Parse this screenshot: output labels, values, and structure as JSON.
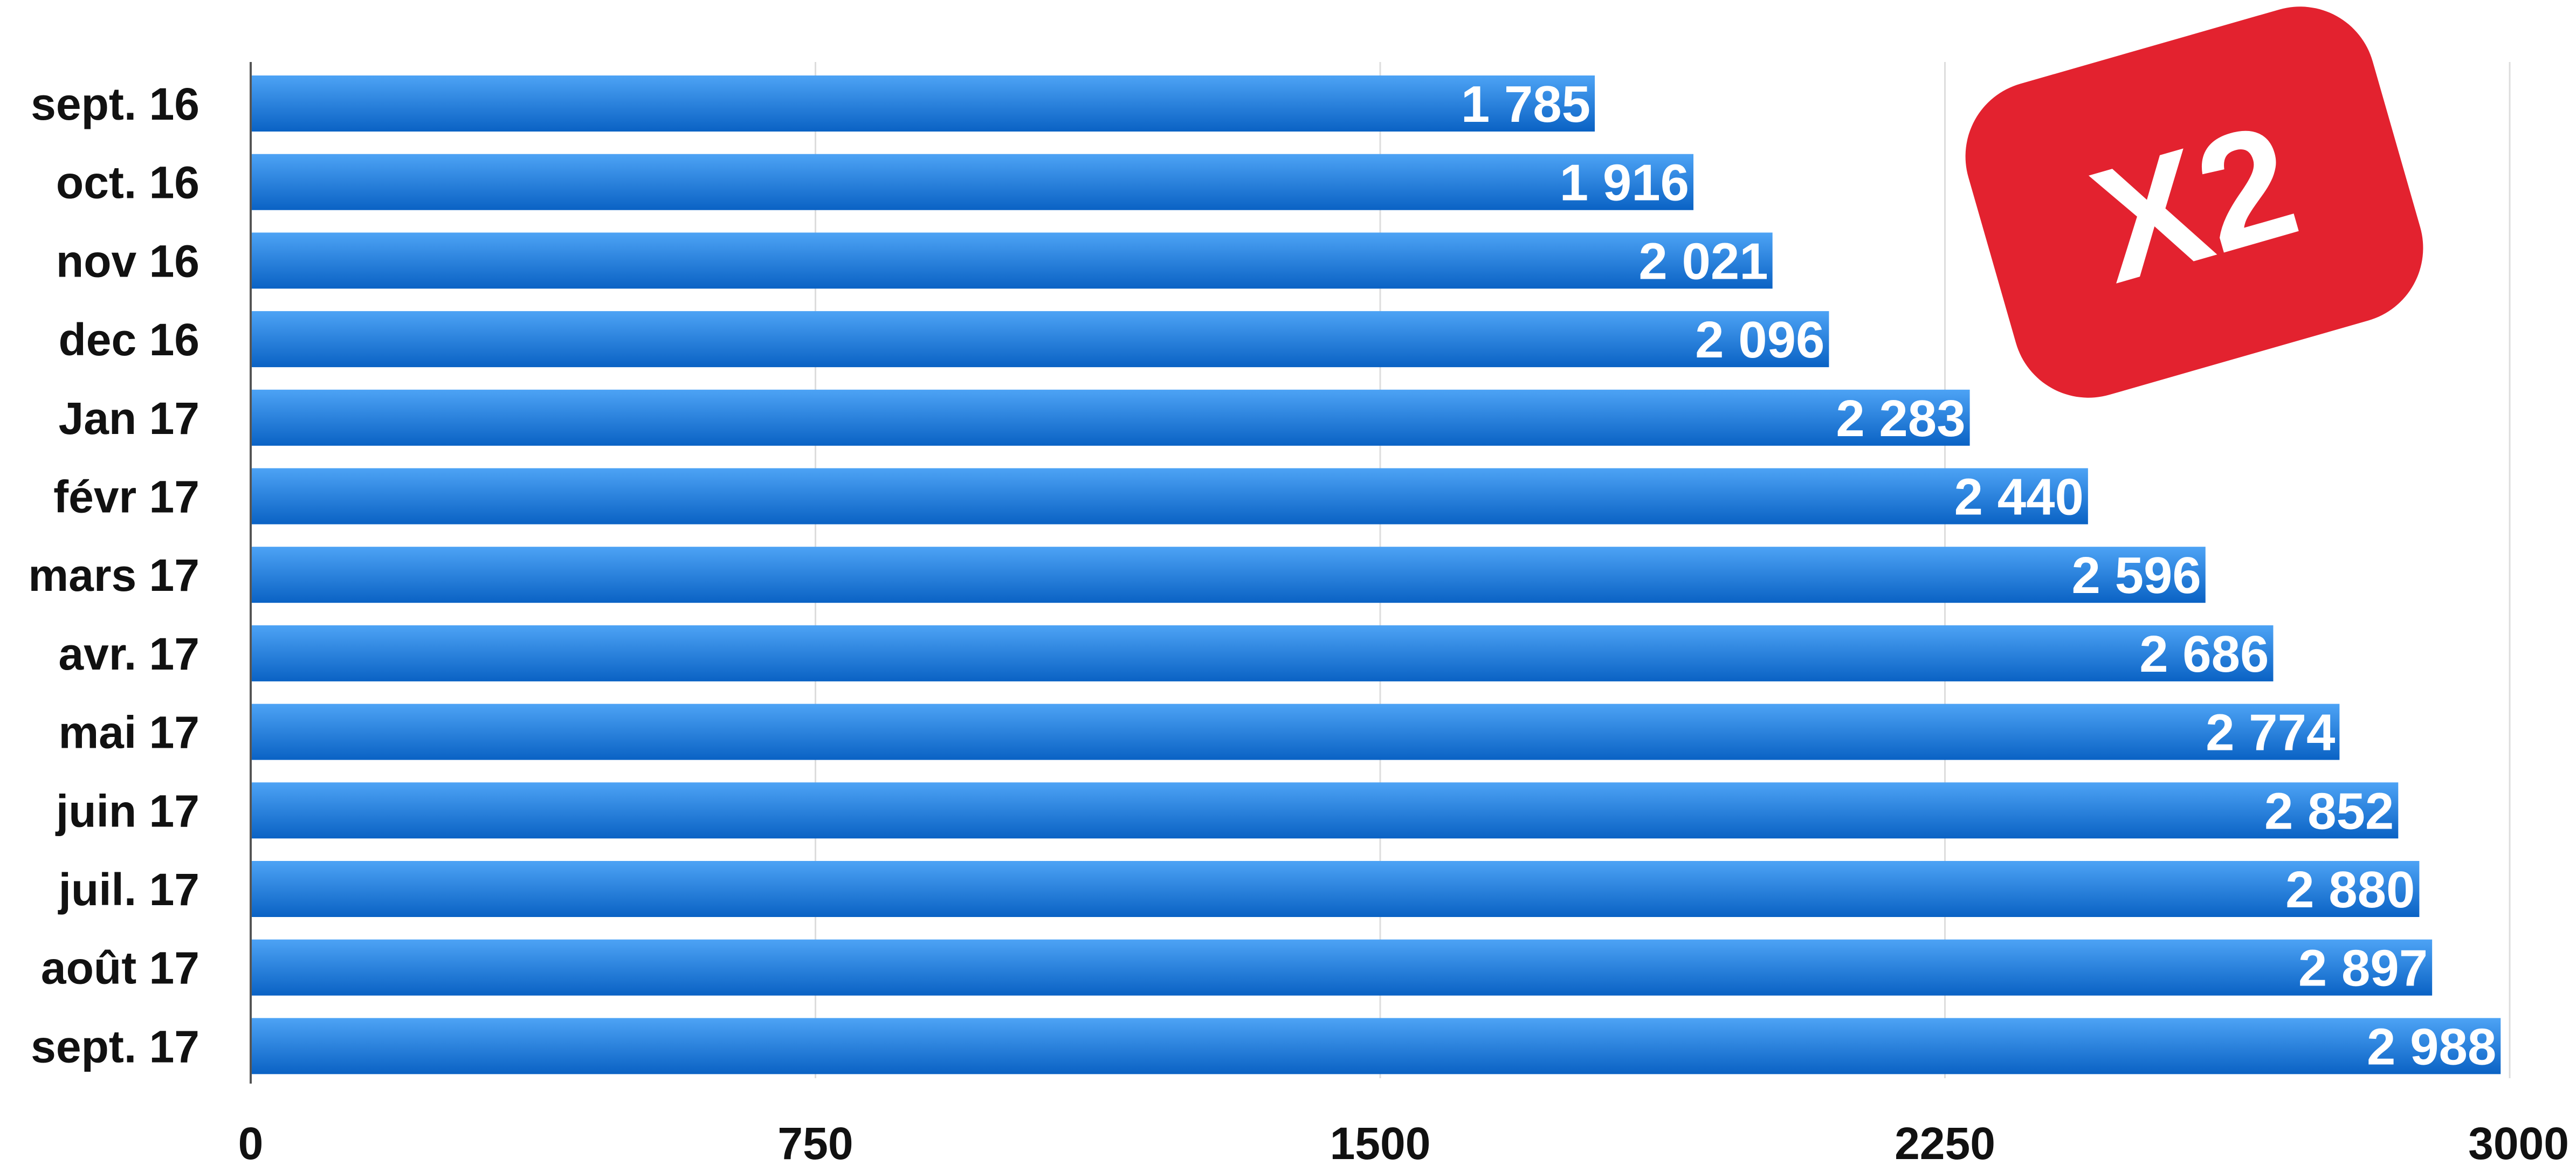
{
  "chart_data": {
    "type": "bar",
    "orientation": "horizontal",
    "categories": [
      "sept. 16",
      "oct. 16",
      "nov 16",
      "dec 16",
      "Jan 17",
      "févr 17",
      "mars 17",
      "avr. 17",
      "mai 17",
      "juin 17",
      "juil. 17",
      "août 17",
      "sept. 17"
    ],
    "values": [
      1785,
      1916,
      2021,
      2096,
      2283,
      2440,
      2596,
      2686,
      2774,
      2852,
      2880,
      2897,
      2988
    ],
    "value_labels": [
      "1 785",
      "1 916",
      "2 021",
      "2 096",
      "2 283",
      "2 440",
      "2 596",
      "2 686",
      "2 774",
      "2 852",
      "2 880",
      "2 897",
      "2 988"
    ],
    "xlim": [
      0,
      3000
    ],
    "xticks": [
      0,
      750,
      1500,
      2250,
      3000
    ],
    "xtick_labels": [
      "0",
      "750",
      "1500",
      "2250",
      "3000"
    ],
    "grid": "vertical",
    "legend": "none",
    "bar_color_light": "#4da3f5",
    "bar_color_dark": "#0a62c4"
  },
  "badge": {
    "text": "X2",
    "color": "#e3222f"
  }
}
